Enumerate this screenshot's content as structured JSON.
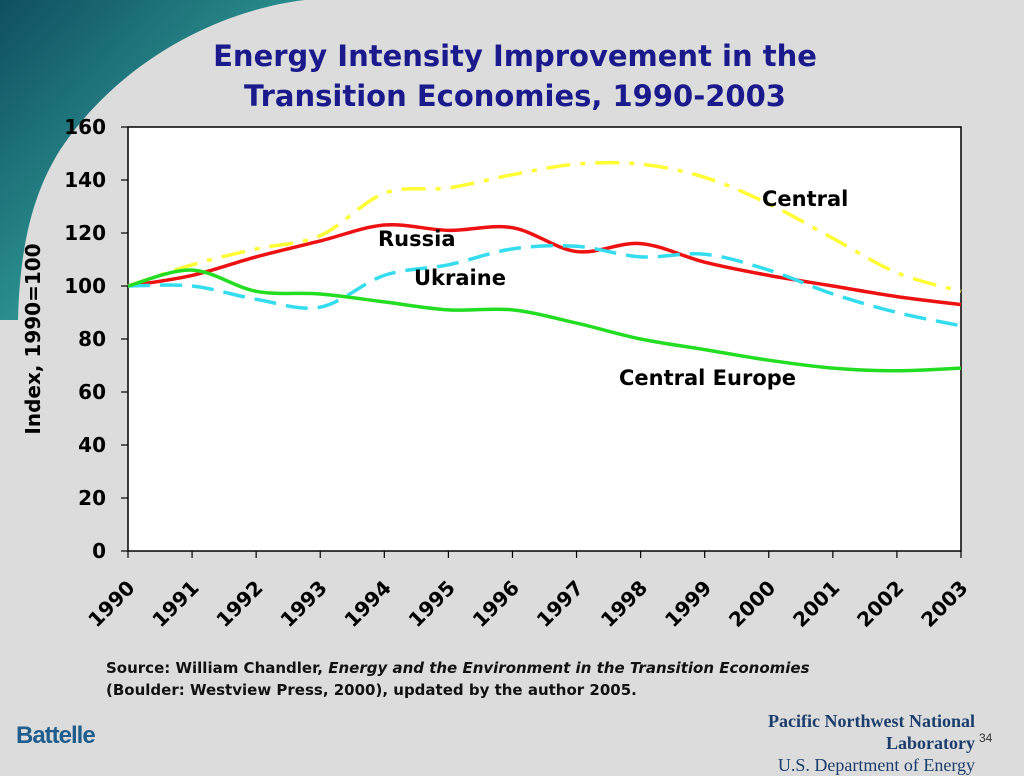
{
  "slide": {
    "title_line1": "Energy Intensity Improvement in the",
    "title_line2": "Transition Economies, 1990-2003",
    "source_prefix": "Source: William Chandler, ",
    "source_title": "Energy and the Environment in the Transition Economies",
    "source_suffix": "(Boulder: Westview Press, 2000), updated by the author 2005.",
    "footer_left_logo": "Battelle",
    "footer_lab": "Pacific Northwest National Laboratory",
    "footer_doe": "U.S. Department of Energy",
    "page_number": "34",
    "colors": {
      "title": "#1a1a8c",
      "background": "#dcdcdc",
      "swoosh_dark": "#0f4f60",
      "swoosh_light": "#2f9a96"
    }
  },
  "chart_data": {
    "type": "line",
    "ylabel": "Index, 1990=100",
    "xlabel": "",
    "ylim": [
      0,
      160
    ],
    "yticks": [
      0,
      20,
      40,
      60,
      80,
      100,
      120,
      140,
      160
    ],
    "x": [
      "1990",
      "1991",
      "1992",
      "1993",
      "1994",
      "1995",
      "1996",
      "1997",
      "1998",
      "1999",
      "2000",
      "2001",
      "2002",
      "2003"
    ],
    "grid": false,
    "legend": "inline labels",
    "series": [
      {
        "name": "Central",
        "color": "#ffff33",
        "dash": "dash-dot",
        "values": [
          100,
          108,
          114,
          119,
          135,
          137,
          142,
          146,
          146,
          141,
          131,
          118,
          105,
          98
        ]
      },
      {
        "name": "Russia",
        "color": "#ee1111",
        "dash": "solid",
        "values": [
          100,
          104,
          111,
          117,
          123,
          121,
          122,
          113,
          116,
          109,
          104,
          100,
          96,
          93
        ]
      },
      {
        "name": "Ukraine",
        "color": "#33ddee",
        "dash": "dashed",
        "values": [
          100,
          100,
          95,
          92,
          104,
          108,
          114,
          115,
          111,
          112,
          106,
          97,
          90,
          85
        ]
      },
      {
        "name": "Central Europe",
        "color": "#22dd22",
        "dash": "solid",
        "values": [
          100,
          106,
          98,
          97,
          94,
          91,
          91,
          86,
          80,
          76,
          72,
          69,
          68,
          69
        ]
      }
    ]
  }
}
